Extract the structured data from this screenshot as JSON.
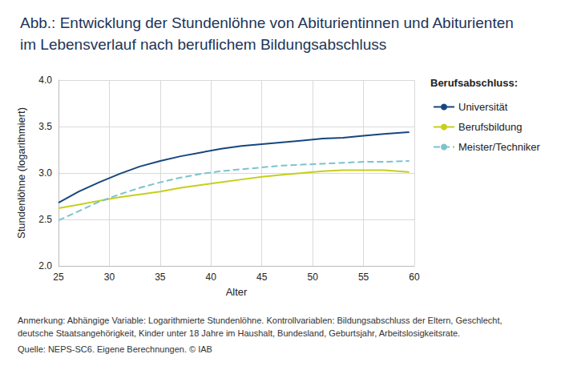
{
  "chart_data": {
    "type": "line",
    "title": "Abb.: Entwicklung der Stundenlöhne von Abiturientinnen und Abiturienten\nim Lebensverlauf nach beruflichem Bildungsabschluss",
    "x_label": "Alter",
    "y_label": "Stundenlöhne (logarithmiert)",
    "legend_title": "Berufsabschluss:",
    "notes": [
      "Anmerkung: Abhängige Variable: Logarithmierte Stundenlöhne. Kontrollvariablen: Bildungsabschluss der Eltern, Geschlecht, deutsche Staatsangehörigkeit, Kinder unter 18 Jahre im Haushalt, Bundesland, Geburtsjahr, Arbeitslosigkeitsrate.",
      "Quelle: NEPS-SC6. Eigene Berechnungen. © IAB"
    ],
    "x": [
      25,
      27,
      29,
      31,
      33,
      35,
      37,
      39,
      41,
      43,
      45,
      47,
      49,
      51,
      53,
      55,
      57,
      59.5
    ],
    "series": [
      {
        "name": "Universität",
        "color": "#17467e",
        "line_style": "solid",
        "values": [
          2.68,
          2.8,
          2.9,
          2.99,
          3.07,
          3.13,
          3.18,
          3.22,
          3.26,
          3.29,
          3.31,
          3.33,
          3.35,
          3.37,
          3.38,
          3.4,
          3.42,
          3.44
        ]
      },
      {
        "name": "Berufsbildung",
        "color": "#c6cf1c",
        "line_style": "solid",
        "values": [
          2.62,
          2.66,
          2.7,
          2.74,
          2.77,
          2.8,
          2.84,
          2.87,
          2.9,
          2.93,
          2.96,
          2.98,
          3.0,
          3.02,
          3.03,
          3.03,
          3.03,
          3.01
        ]
      },
      {
        "name": "Meister/Techniker",
        "color": "#7cc3cf",
        "line_style": "dashed",
        "values": [
          2.49,
          2.59,
          2.69,
          2.77,
          2.84,
          2.9,
          2.95,
          2.99,
          3.02,
          3.04,
          3.06,
          3.08,
          3.09,
          3.1,
          3.11,
          3.12,
          3.12,
          3.13
        ]
      }
    ],
    "xlim": [
      25,
      60
    ],
    "xticks": [
      25,
      30,
      35,
      40,
      45,
      50,
      55,
      60
    ],
    "ylim": [
      2,
      4
    ],
    "yticks": [
      {
        "value": 2,
        "label": "2.0"
      },
      2.5,
      {
        "value": 3,
        "label": "3.0"
      },
      3.5,
      {
        "value": 4,
        "label": "4.0"
      }
    ],
    "grid": true,
    "legend": "right"
  }
}
